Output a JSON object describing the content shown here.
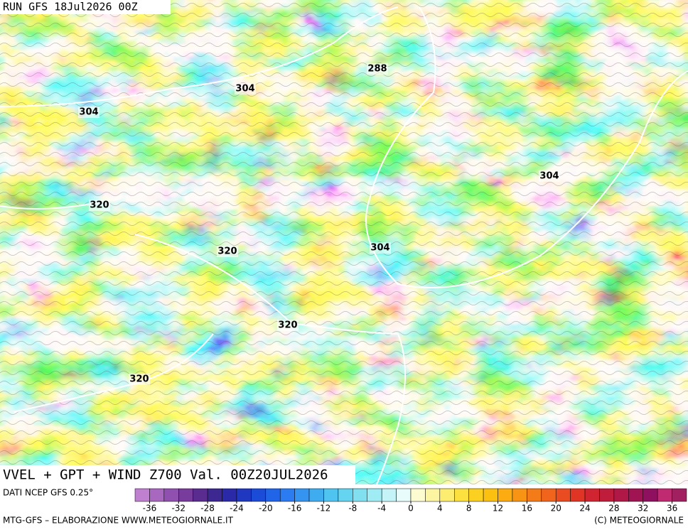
{
  "header": {
    "run": "RUN GFS 18Jul2026 00Z",
    "title": "VVEL + GPT + WIND Z700 Val. 00Z20JUL2026",
    "source": "DATI NCEP GFS 0.25°"
  },
  "map": {
    "contour_labels": [
      "304",
      "288",
      "304",
      "320",
      "304",
      "320",
      "304",
      "320",
      "320"
    ]
  },
  "colorbar": {
    "colors": [
      "#c080d0",
      "#a868c0",
      "#9050b0",
      "#783c9c",
      "#5a2c90",
      "#3c2890",
      "#2a2aa8",
      "#2038c0",
      "#1a4cd8",
      "#2064e8",
      "#2a7cf0",
      "#3494f0",
      "#40acf0",
      "#50c4f0",
      "#64d4f0",
      "#80e0f0",
      "#a0ecf4",
      "#c4f4f8",
      "#e8fcfc",
      "#fcfcd0",
      "#fcf4a0",
      "#fcec70",
      "#fce040",
      "#fcd020",
      "#fcc010",
      "#fcac10",
      "#f89414",
      "#f47c18",
      "#f0641c",
      "#e84c20",
      "#e03424",
      "#d02430",
      "#c01c3c",
      "#b01848",
      "#a01454",
      "#901060",
      "#c02a70",
      "#a02060"
    ],
    "ticks": [
      -36,
      -32,
      -28,
      -24,
      -20,
      -16,
      -12,
      -8,
      -4,
      0,
      4,
      8,
      12,
      16,
      20,
      24,
      28,
      32,
      36
    ]
  },
  "footer": {
    "left": "MTG-GFS – ELABORAZIONE WWW.METEOGIORNALE.IT",
    "right": "(C) METEOGIORNALE"
  }
}
